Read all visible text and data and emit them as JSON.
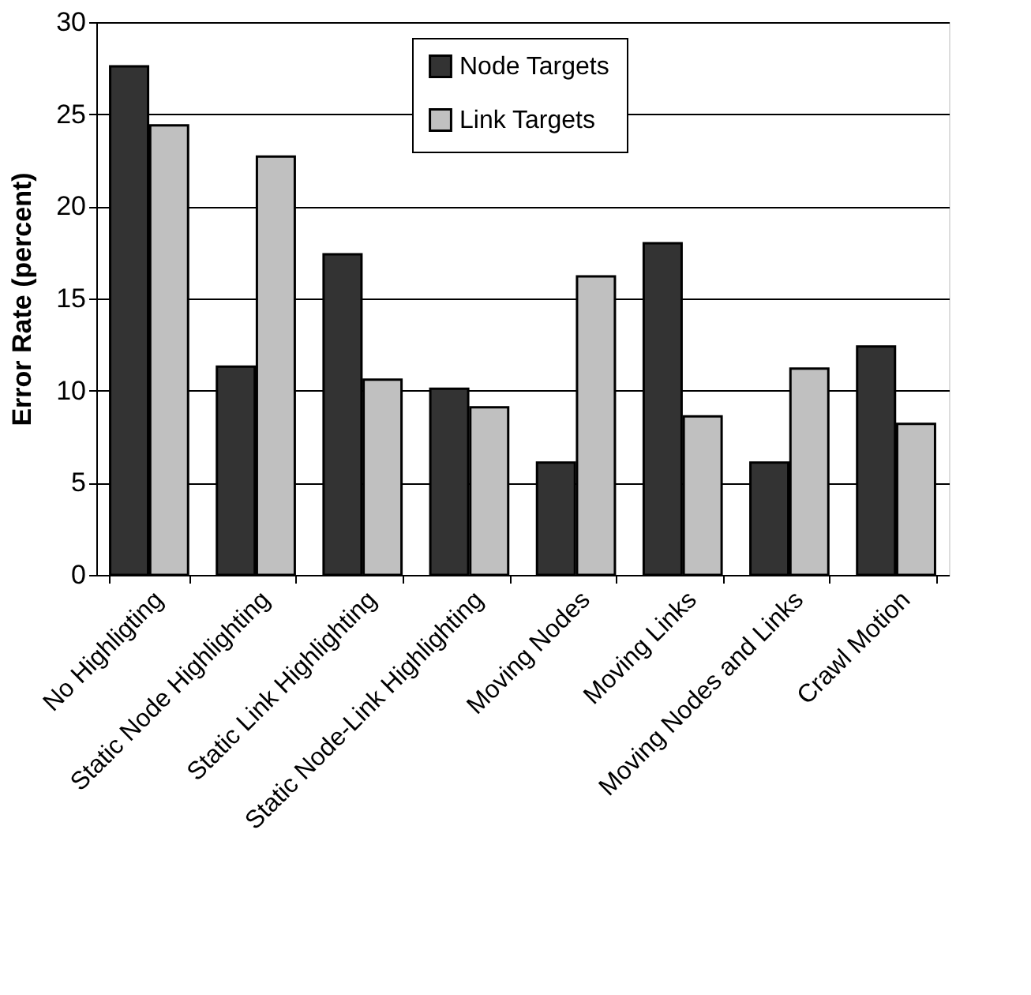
{
  "chart_data": {
    "type": "bar",
    "ylabel": "Error Rate (percent)",
    "categories": [
      "No Highligting",
      "Static Node Highlighting",
      "Static Link Highlighting",
      "Static Node-Link Highlighting",
      "Moving Nodes",
      "Moving Links",
      "Moving Nodes and Links",
      "Crawl Motion"
    ],
    "series": [
      {
        "name": "Node Targets",
        "color": "#333333",
        "values": [
          27.6,
          11.3,
          17.4,
          10.1,
          6.1,
          18.0,
          6.1,
          12.4
        ]
      },
      {
        "name": "Link Targets",
        "color": "#c0c0c0",
        "values": [
          24.4,
          22.7,
          10.6,
          9.1,
          16.2,
          8.6,
          11.2,
          8.2
        ]
      }
    ],
    "ylim": [
      0,
      30
    ],
    "yticks": [
      0,
      5,
      10,
      15,
      20,
      25,
      30
    ],
    "grid": "y",
    "legend": "top"
  }
}
